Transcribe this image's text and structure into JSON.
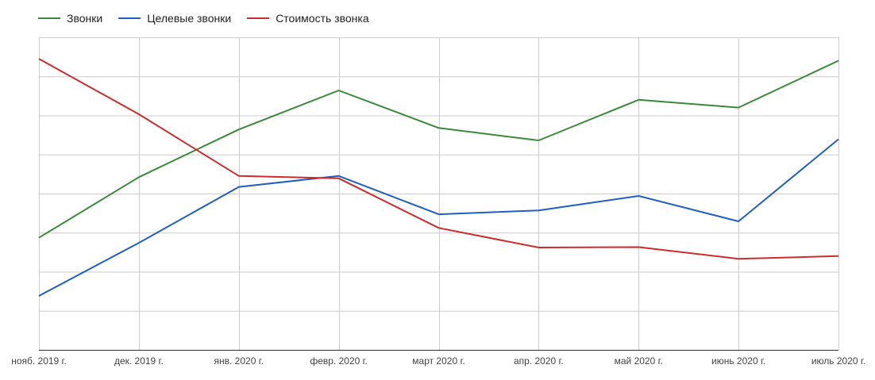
{
  "chart_data": {
    "type": "line",
    "categories": [
      "нояб. 2019 г.",
      "дек. 2019 г.",
      "янв. 2020 г.",
      "февр. 2020 г.",
      "март 2020 г.",
      "апр. 2020 г.",
      "май 2020 г.",
      "июнь 2020 г.",
      "июль 2020 г."
    ],
    "series": [
      {
        "name": "Звонки",
        "color": "#3a8a3a",
        "values": [
          2.87,
          4.42,
          5.64,
          6.64,
          5.68,
          5.36,
          6.4,
          6.2,
          7.4
        ]
      },
      {
        "name": "Целевые звонки",
        "color": "#1f5fbf",
        "values": [
          1.38,
          2.74,
          4.17,
          4.45,
          3.47,
          3.57,
          3.94,
          3.29,
          5.39
        ]
      },
      {
        "name": "Стоимость звонка",
        "color": "#cc2c2c",
        "values": [
          7.45,
          6.03,
          4.45,
          4.39,
          3.12,
          2.62,
          2.63,
          2.33,
          2.4
        ]
      }
    ],
    "ylim": [
      0,
      8
    ],
    "grid": true,
    "legend": "top-left"
  }
}
